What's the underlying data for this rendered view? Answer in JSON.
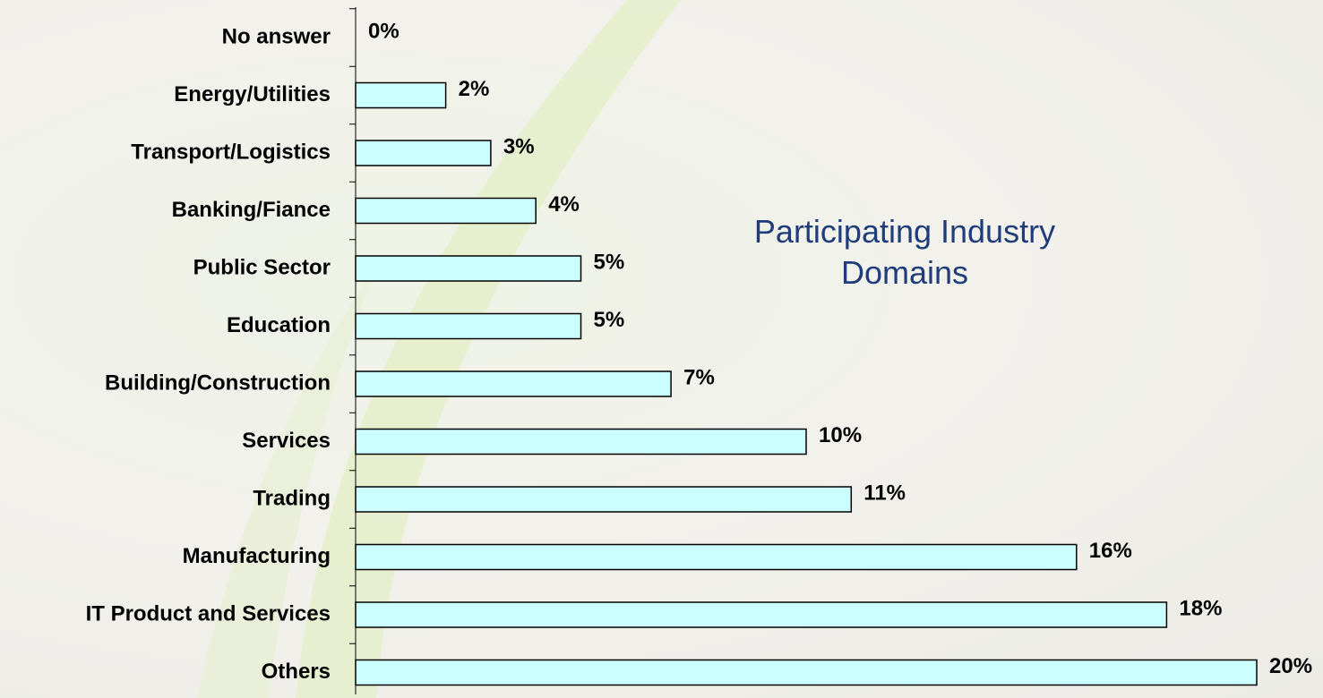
{
  "chart_data": {
    "type": "bar",
    "orientation": "horizontal",
    "title": "Participating Industry Domains",
    "categories": [
      "No answer",
      "Energy/Utilities",
      "Transport/Logistics",
      "Banking/Fiance",
      "Public Sector",
      "Education",
      "Building/Construction",
      "Services",
      "Trading",
      "Manufacturing",
      "IT Product and Services",
      "Others"
    ],
    "values": [
      0,
      2,
      3,
      4,
      5,
      5,
      7,
      10,
      11,
      16,
      18,
      20
    ],
    "value_labels": [
      "0%",
      "2%",
      "3%",
      "4%",
      "5%",
      "5%",
      "7%",
      "10%",
      "11%",
      "16%",
      "18%",
      "20%"
    ],
    "color": "#ccffff"
  }
}
